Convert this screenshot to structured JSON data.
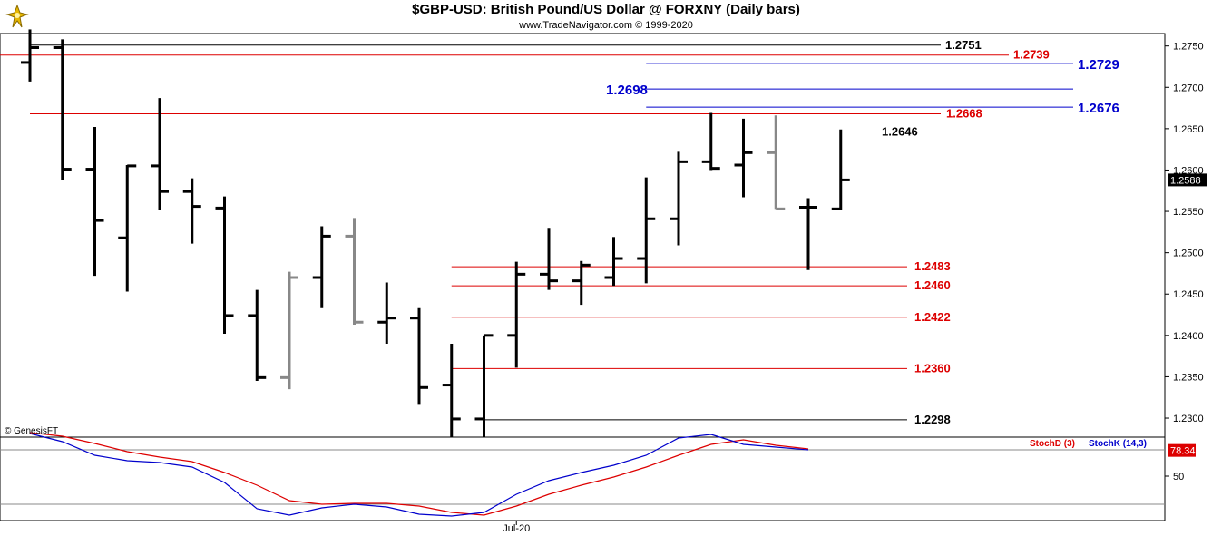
{
  "header": {
    "title": "$GBP-USD:  British Pound/US Dollar @ FORXNY  (Daily bars)",
    "subtitle": "www.TradeNavigator.com © 1999-2020"
  },
  "copyright_label": "© GenesisFT",
  "colors": {
    "up": "#000000",
    "gray": "#888888",
    "red": "#dd0000",
    "blue": "#0000cc",
    "black": "#000000"
  },
  "chart_data": [
    {
      "type": "bar",
      "subtype": "ohlc",
      "title": "$GBP-USD:  British Pound/US Dollar @ FORXNY  (Daily bars)",
      "ylim": [
        1.2277,
        1.2765
      ],
      "y_ticks": [
        "1.2300",
        "1.2350",
        "1.2400",
        "1.2450",
        "1.2500",
        "1.2550",
        "1.2600",
        "1.2650",
        "1.2700",
        "1.2750"
      ],
      "last_price": "1.2588",
      "x_tick_label": "Jul-20",
      "bars": [
        {
          "o": 1.273,
          "h": 1.277,
          "l": 1.2707,
          "c": 1.2748,
          "color": "black"
        },
        {
          "o": 1.2748,
          "h": 1.2758,
          "l": 1.2588,
          "c": 1.2601,
          "color": "black"
        },
        {
          "o": 1.2601,
          "h": 1.2652,
          "l": 1.2472,
          "c": 1.2539,
          "color": "black"
        },
        {
          "o": 1.2518,
          "h": 1.2606,
          "l": 1.2453,
          "c": 1.2605,
          "color": "black"
        },
        {
          "o": 1.2605,
          "h": 1.2687,
          "l": 1.2552,
          "c": 1.2574,
          "color": "black"
        },
        {
          "o": 1.2574,
          "h": 1.259,
          "l": 1.2511,
          "c": 1.2556,
          "color": "black"
        },
        {
          "o": 1.2554,
          "h": 1.2568,
          "l": 1.2402,
          "c": 1.2424,
          "color": "black"
        },
        {
          "o": 1.2424,
          "h": 1.2455,
          "l": 1.2345,
          "c": 1.2349,
          "color": "black"
        },
        {
          "o": 1.2349,
          "h": 1.2477,
          "l": 1.2335,
          "c": 1.247,
          "color": "gray"
        },
        {
          "o": 1.247,
          "h": 1.2532,
          "l": 1.2433,
          "c": 1.252,
          "color": "black"
        },
        {
          "o": 1.252,
          "h": 1.2542,
          "l": 1.2413,
          "c": 1.2416,
          "color": "gray"
        },
        {
          "o": 1.2416,
          "h": 1.2464,
          "l": 1.239,
          "c": 1.2421,
          "color": "black"
        },
        {
          "o": 1.2421,
          "h": 1.2433,
          "l": 1.2316,
          "c": 1.2337,
          "color": "black"
        },
        {
          "o": 1.234,
          "h": 1.239,
          "l": 1.2277,
          "c": 1.2299,
          "color": "black"
        },
        {
          "o": 1.2299,
          "h": 1.24,
          "l": 1.2277,
          "c": 1.24,
          "color": "black"
        },
        {
          "o": 1.24,
          "h": 1.2489,
          "l": 1.2361,
          "c": 1.2474,
          "color": "black"
        },
        {
          "o": 1.2474,
          "h": 1.253,
          "l": 1.2455,
          "c": 1.2466,
          "color": "black"
        },
        {
          "o": 1.2466,
          "h": 1.249,
          "l": 1.2437,
          "c": 1.2485,
          "color": "black"
        },
        {
          "o": 1.247,
          "h": 1.2519,
          "l": 1.246,
          "c": 1.2493,
          "color": "black"
        },
        {
          "o": 1.2493,
          "h": 1.2591,
          "l": 1.2463,
          "c": 1.2541,
          "color": "black"
        },
        {
          "o": 1.2541,
          "h": 1.2622,
          "l": 1.2509,
          "c": 1.261,
          "color": "black"
        },
        {
          "o": 1.261,
          "h": 1.2669,
          "l": 1.26,
          "c": 1.2602,
          "color": "black"
        },
        {
          "o": 1.2606,
          "h": 1.2662,
          "l": 1.2567,
          "c": 1.2621,
          "color": "black"
        },
        {
          "o": 1.2621,
          "h": 1.2666,
          "l": 1.2553,
          "c": 1.2553,
          "color": "gray"
        },
        {
          "o": 1.2555,
          "h": 1.2566,
          "l": 1.2479,
          "c": 1.2555,
          "color": "black"
        },
        {
          "o": 1.2553,
          "h": 1.2649,
          "l": 1.2552,
          "c": 1.2588,
          "color": "black"
        }
      ],
      "levels": [
        {
          "value": 1.2751,
          "label": "1.2751",
          "color": "black",
          "from_bar": 0,
          "label_side": "right"
        },
        {
          "value": 1.2739,
          "label": "1.2739",
          "color": "red",
          "from_bar": -1,
          "label_side": "right"
        },
        {
          "value": 1.2729,
          "label": "1.2729",
          "color": "blue",
          "from_bar": 19,
          "label_side": "right"
        },
        {
          "value": 1.2698,
          "label": "1.2698",
          "color": "blue",
          "from_bar": 19,
          "label_side": "left"
        },
        {
          "value": 1.2676,
          "label": "1.2676",
          "color": "blue",
          "from_bar": 19,
          "label_side": "right"
        },
        {
          "value": 1.2668,
          "label": "1.2668",
          "color": "red",
          "from_bar": 0,
          "label_side": "right"
        },
        {
          "value": 1.2646,
          "label": "1.2646",
          "color": "black",
          "from_bar": 23,
          "label_side": "right"
        },
        {
          "value": 1.2483,
          "label": "1.2483",
          "color": "red",
          "from_bar": 13,
          "label_side": "right"
        },
        {
          "value": 1.246,
          "label": "1.2460",
          "color": "red",
          "from_bar": 13,
          "label_side": "right"
        },
        {
          "value": 1.2422,
          "label": "1.2422",
          "color": "red",
          "from_bar": 13,
          "label_side": "right"
        },
        {
          "value": 1.236,
          "label": "1.2360",
          "color": "red",
          "from_bar": 13,
          "label_side": "right"
        },
        {
          "value": 1.2298,
          "label": "1.2298",
          "color": "black",
          "from_bar": 14,
          "label_side": "right"
        }
      ]
    },
    {
      "type": "line",
      "ylim": [
        0,
        100
      ],
      "y_ticks": [
        "50"
      ],
      "last_value": "78.34",
      "series": [
        {
          "name": "StochD (3)",
          "color": "red",
          "values": [
            98,
            94,
            86,
            77,
            71,
            66,
            54,
            40,
            23,
            19,
            20,
            20,
            17,
            10,
            7,
            17,
            30,
            40,
            49,
            60,
            73,
            85,
            90,
            84,
            80
          ]
        },
        {
          "name": "StochK (14,3)",
          "color": "blue",
          "values": [
            97,
            88,
            73,
            67,
            65,
            60,
            43,
            14,
            7,
            15,
            19,
            16,
            8,
            6,
            10,
            30,
            45,
            54,
            62,
            73,
            92,
            96,
            85,
            82,
            79
          ]
        }
      ]
    }
  ]
}
